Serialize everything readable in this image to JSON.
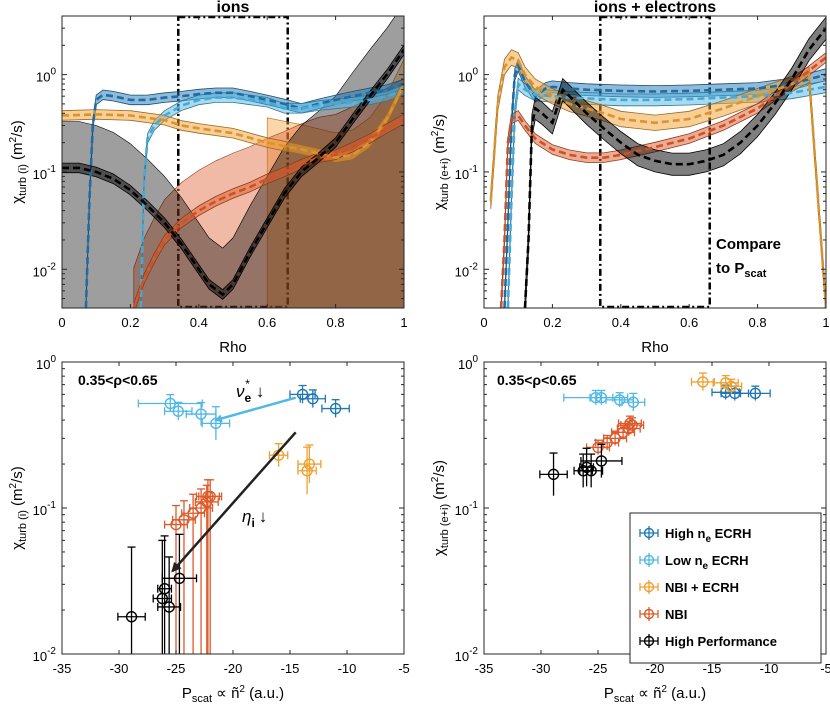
{
  "colors": {
    "high_ne_ecrh": "#1f77b4",
    "low_ne_ecrh": "#4fb8e6",
    "nbi_ecrh": "#f0a030",
    "nbi": "#dd5a2a",
    "high_perf": "#000000",
    "grey_band": "#8f8f8f"
  },
  "chart_data": [
    {
      "id": "tl",
      "type": "line",
      "title": "ions",
      "xlabel": "Rho",
      "ylabel_main": "χ",
      "ylabel_sub": "turb (i)",
      "ylabel_unit": "(m",
      "ylabel_sup": "2",
      "ylabel_end": "/s)",
      "xlim": [
        0,
        1
      ],
      "ylim": [
        0.004,
        4
      ],
      "yscale": "log",
      "xticks": [
        "0",
        "0.2",
        "0.4",
        "0.6",
        "0.8",
        "1"
      ],
      "yticks": [
        "10",
        "10",
        "10"
      ],
      "yexp": [
        "-2",
        "-1",
        "0"
      ],
      "box_rho": [
        0.34,
        0.66
      ],
      "series": [
        {
          "name": "High ne ECRH",
          "color": "high_ne_ecrh",
          "x": [
            0.07,
            0.08,
            0.09,
            0.1,
            0.12,
            0.15,
            0.2,
            0.25,
            0.3,
            0.35,
            0.4,
            0.45,
            0.5,
            0.55,
            0.6,
            0.65,
            0.7,
            0.75,
            0.8,
            0.85,
            0.9,
            0.95,
            1.0
          ],
          "y": [
            0.004,
            0.05,
            0.3,
            0.55,
            0.62,
            0.6,
            0.55,
            0.55,
            0.58,
            0.6,
            0.63,
            0.65,
            0.65,
            0.6,
            0.55,
            0.5,
            0.45,
            0.5,
            0.55,
            0.6,
            0.65,
            0.7,
            0.8
          ],
          "band": 0.12
        },
        {
          "name": "Low ne ECRH",
          "color": "low_ne_ecrh",
          "x": [
            0.23,
            0.24,
            0.25,
            0.27,
            0.3,
            0.35,
            0.4,
            0.45,
            0.5,
            0.55,
            0.6,
            0.65,
            0.7,
            0.75,
            0.8,
            0.85,
            0.9,
            0.95,
            1.0
          ],
          "y": [
            0.004,
            0.08,
            0.22,
            0.3,
            0.38,
            0.48,
            0.55,
            0.58,
            0.58,
            0.55,
            0.52,
            0.45,
            0.45,
            0.48,
            0.5,
            0.52,
            0.55,
            0.6,
            0.7
          ],
          "band": 0.12
        },
        {
          "name": "NBI + ECRH",
          "color": "nbi_ecrh",
          "x": [
            0.0,
            0.1,
            0.2,
            0.3,
            0.35,
            0.4,
            0.5,
            0.6,
            0.7,
            0.8,
            0.85,
            0.9,
            0.95,
            1.0
          ],
          "y": [
            0.38,
            0.39,
            0.38,
            0.34,
            0.3,
            0.28,
            0.25,
            0.2,
            0.17,
            0.14,
            0.15,
            0.2,
            0.35,
            0.8
          ],
          "band": 0.12,
          "unc_lo": 0.004,
          "unc_from": 0.55
        },
        {
          "name": "NBI",
          "color": "nbi",
          "x": [
            0.21,
            0.22,
            0.24,
            0.27,
            0.3,
            0.35,
            0.4,
            0.45,
            0.5,
            0.55,
            0.6,
            0.65,
            0.7,
            0.75,
            0.8,
            0.85,
            0.9,
            0.95,
            1.0
          ],
          "y": [
            0.004,
            0.005,
            0.008,
            0.013,
            0.02,
            0.03,
            0.04,
            0.05,
            0.06,
            0.07,
            0.085,
            0.1,
            0.12,
            0.14,
            0.15,
            0.18,
            0.22,
            0.28,
            0.35
          ],
          "band": 0.12,
          "unc_hi": 0.2,
          "unc_lo": 0.004
        },
        {
          "name": "High Performance",
          "color": "high_perf",
          "x": [
            0.0,
            0.05,
            0.1,
            0.15,
            0.2,
            0.25,
            0.3,
            0.35,
            0.4,
            0.43,
            0.47,
            0.5,
            0.55,
            0.6,
            0.65,
            0.7,
            0.75,
            0.8,
            0.85,
            0.9,
            0.95,
            1.0
          ],
          "y": [
            0.11,
            0.11,
            0.1,
            0.085,
            0.065,
            0.045,
            0.03,
            0.018,
            0.01,
            0.007,
            0.0055,
            0.007,
            0.015,
            0.03,
            0.06,
            0.1,
            0.14,
            0.2,
            0.35,
            0.6,
            1.0,
            1.8
          ],
          "band": 0.12,
          "unc_hi": 0.25,
          "unc_lo": 0.004
        }
      ]
    },
    {
      "id": "tr",
      "type": "line",
      "title": "ions + electrons",
      "xlabel": "Rho",
      "ylabel_main": "χ",
      "ylabel_sub": "turb (e+i)",
      "ylabel_unit": "(m",
      "ylabel_sup": "2",
      "ylabel_end": "/s)",
      "xlim": [
        0,
        1
      ],
      "ylim": [
        0.004,
        4
      ],
      "yscale": "log",
      "xticks": [
        "0",
        "0.2",
        "0.4",
        "0.6",
        "0.8",
        "1"
      ],
      "yticks": [
        "10",
        "10",
        "10"
      ],
      "yexp": [
        "-2",
        "-1",
        "0"
      ],
      "box_rho": [
        0.34,
        0.66
      ],
      "annotation_line1": "Compare",
      "annotation_line2": "to P",
      "annotation_sub": "scat",
      "series": [
        {
          "name": "High ne ECRH",
          "color": "high_ne_ecrh",
          "x": [
            0.06,
            0.07,
            0.08,
            0.09,
            0.1,
            0.12,
            0.15,
            0.18,
            0.2,
            0.25,
            0.3,
            0.4,
            0.5,
            0.6,
            0.7,
            0.8,
            0.9,
            1.0
          ],
          "y": [
            0.004,
            0.03,
            0.3,
            1.0,
            1.25,
            0.85,
            0.6,
            0.72,
            0.75,
            0.72,
            0.7,
            0.68,
            0.67,
            0.68,
            0.7,
            0.72,
            0.8,
            1.0
          ],
          "band": 0.15
        },
        {
          "name": "Low ne ECRH",
          "color": "low_ne_ecrh",
          "x": [
            0.07,
            0.08,
            0.09,
            0.1,
            0.12,
            0.15,
            0.2,
            0.25,
            0.3,
            0.4,
            0.5,
            0.6,
            0.7,
            0.8,
            0.9,
            1.0
          ],
          "y": [
            0.004,
            0.05,
            0.4,
            0.8,
            0.7,
            0.62,
            0.6,
            0.58,
            0.57,
            0.55,
            0.55,
            0.56,
            0.58,
            0.6,
            0.65,
            0.75
          ],
          "band": 0.15
        },
        {
          "name": "NBI + ECRH",
          "color": "nbi_ecrh",
          "x": [
            0.02,
            0.04,
            0.06,
            0.08,
            0.1,
            0.12,
            0.15,
            0.2,
            0.25,
            0.3,
            0.35,
            0.4,
            0.5,
            0.6,
            0.7,
            0.8,
            0.9,
            0.95,
            1.0
          ],
          "y": [
            0.05,
            0.5,
            1.2,
            1.5,
            1.4,
            1.0,
            0.75,
            0.6,
            0.5,
            0.45,
            0.4,
            0.35,
            0.32,
            0.35,
            0.45,
            0.6,
            0.8,
            1.0,
            0.004
          ],
          "band": 0.2
        },
        {
          "name": "NBI",
          "color": "nbi",
          "x": [
            0.05,
            0.06,
            0.07,
            0.08,
            0.1,
            0.12,
            0.15,
            0.2,
            0.25,
            0.3,
            0.35,
            0.4,
            0.5,
            0.6,
            0.7,
            0.8,
            0.9,
            1.0
          ],
          "y": [
            0.004,
            0.02,
            0.2,
            0.35,
            0.38,
            0.3,
            0.22,
            0.17,
            0.15,
            0.14,
            0.14,
            0.15,
            0.18,
            0.22,
            0.3,
            0.45,
            0.8,
            1.5
          ],
          "band": 0.12
        },
        {
          "name": "High Performance",
          "color": "high_perf",
          "x": [
            0.12,
            0.13,
            0.14,
            0.15,
            0.17,
            0.2,
            0.23,
            0.25,
            0.3,
            0.35,
            0.4,
            0.45,
            0.5,
            0.55,
            0.6,
            0.65,
            0.7,
            0.75,
            0.8,
            0.85,
            0.9,
            0.95,
            1.0
          ],
          "y": [
            0.004,
            0.02,
            0.3,
            0.45,
            0.4,
            0.32,
            0.7,
            0.6,
            0.4,
            0.28,
            0.2,
            0.15,
            0.13,
            0.12,
            0.12,
            0.13,
            0.15,
            0.2,
            0.3,
            0.5,
            0.9,
            1.8,
            3.0
          ],
          "band": 0.3
        }
      ]
    },
    {
      "id": "bl",
      "type": "scatter",
      "xlabel_main": "P",
      "xlabel_sub": "scat",
      "xlabel_rest": " ∝ ñ",
      "xlabel_sup": "2",
      "xlabel_end": " (a.u.)",
      "ylabel_main": "χ",
      "ylabel_sub": "turb (i)",
      "ylabel_unit": "(m",
      "ylabel_sup": "2",
      "ylabel_end": "/s)",
      "xlim": [
        -35,
        -5
      ],
      "ylim": [
        0.01,
        1
      ],
      "yscale": "log",
      "xticks": [
        "-35",
        "-30",
        "-25",
        "-20",
        "-15",
        "-10",
        "-5"
      ],
      "yticks": [
        "10",
        "10",
        "10"
      ],
      "yexp": [
        "-2",
        "-1",
        "0"
      ],
      "range_label": "0.35<ρ<0.65",
      "annot_nu": "ν",
      "annot_nu_sub": "e",
      "annot_nu_sup": "*",
      "annot_nu_arrow": "↓",
      "annot_eta": "η",
      "annot_eta_sub": "i",
      "annot_eta_arrow": "↓",
      "arrow_nu": [
        [
          -14.5,
          0.57
        ],
        [
          -21.5,
          0.4
        ]
      ],
      "arrow_eta": [
        [
          -14.5,
          0.33
        ],
        [
          -25.3,
          0.037
        ]
      ],
      "series": [
        {
          "name": "High ne ECRH",
          "color": "high_ne_ecrh",
          "x": [
            -13.9,
            -13.0,
            -11.0
          ],
          "y": [
            0.6,
            0.56,
            0.48
          ],
          "xerr": [
            1.1,
            1.1,
            1.2
          ],
          "yerr_rel": [
            0.15,
            0.15,
            0.15
          ]
        },
        {
          "name": "Low ne ECRH",
          "color": "low_ne_ecrh",
          "x": [
            -25.5,
            -24.8,
            -22.8,
            -21.5
          ],
          "y": [
            0.52,
            0.46,
            0.44,
            0.38
          ],
          "xerr": [
            2.8,
            1.2,
            1.3,
            1.2
          ],
          "yerr_rel": [
            0.15,
            0.15,
            0.2,
            0.3
          ]
        },
        {
          "name": "NBI + ECRH",
          "color": "nbi_ecrh",
          "x": [
            -16.0,
            -13.3,
            -13.5
          ],
          "y": [
            0.23,
            0.2,
            0.18
          ],
          "xerr": [
            0.8,
            1.0,
            0.8
          ],
          "yerr_rel": [
            0.2,
            0.35,
            0.45
          ]
        },
        {
          "name": "NBI",
          "color": "nbi",
          "x": [
            -25.0,
            -24.3,
            -23.5,
            -22.8,
            -22.3,
            -22.0,
            -22.2
          ],
          "y": [
            0.077,
            0.083,
            0.092,
            0.1,
            0.11,
            0.12,
            0.12
          ],
          "xerr": [
            1.0,
            1.0,
            1.0,
            1.0,
            1.0,
            1.0,
            1.0
          ],
          "ylo": [
            0.01,
            0.01,
            0.01,
            0.01,
            0.01,
            0.01,
            0.01
          ],
          "yerr_rel": [
            0.35,
            0.35,
            0.35,
            0.35,
            0.3,
            0.3,
            0.3
          ]
        },
        {
          "name": "High Performance",
          "color": "high_perf",
          "x": [
            -28.9,
            -26.2,
            -26.0,
            -25.6,
            -24.7
          ],
          "y": [
            0.018,
            0.024,
            0.028,
            0.021,
            0.033
          ],
          "xerr": [
            1.2,
            0.8,
            0.6,
            1.0,
            1.5
          ],
          "ylo": [
            0.01,
            0.01,
            0.01,
            0.01,
            0.01
          ],
          "yerr_rel": [
            2.0,
            1.5,
            1.3,
            1.2,
            1.0
          ]
        }
      ]
    },
    {
      "id": "br",
      "type": "scatter",
      "xlabel_main": "P",
      "xlabel_sub": "scat",
      "xlabel_rest": " ∝ ñ",
      "xlabel_sup": "2",
      "xlabel_end": " (a.u.)",
      "ylabel_main": "χ",
      "ylabel_sub": "turb (e+i)",
      "ylabel_unit": "(m",
      "ylabel_sup": "2",
      "ylabel_end": "/s)",
      "xlim": [
        -35,
        -5
      ],
      "ylim": [
        0.01,
        1
      ],
      "yscale": "log",
      "xticks": [
        "-35",
        "-30",
        "-25",
        "-20",
        "-15",
        "-10",
        "-5"
      ],
      "yticks": [
        "10",
        "10",
        "10"
      ],
      "yexp": [
        "-2",
        "-1",
        "0"
      ],
      "range_label": "0.35<ρ<0.65",
      "legend_position": "bottom-right",
      "legend": [
        {
          "pre": "High n",
          "sub": "e",
          "post": " ECRH",
          "color": "high_ne_ecrh"
        },
        {
          "pre": "Low n",
          "sub": "e",
          "post": " ECRH",
          "color": "low_ne_ecrh"
        },
        {
          "pre": "NBI + ECRH",
          "sub": "",
          "post": "",
          "color": "nbi_ecrh"
        },
        {
          "pre": "NBI",
          "sub": "",
          "post": "",
          "color": "nbi"
        },
        {
          "pre": "High Performance",
          "sub": "",
          "post": "",
          "color": "high_perf"
        }
      ],
      "series": [
        {
          "name": "High ne ECRH",
          "color": "high_ne_ecrh",
          "x": [
            -13.8,
            -13.0,
            -11.2
          ],
          "y": [
            0.62,
            0.61,
            0.61
          ],
          "xerr": [
            1.2,
            1.2,
            1.3
          ],
          "yerr_rel": [
            0.12,
            0.12,
            0.12
          ]
        },
        {
          "name": "Low ne ECRH",
          "color": "low_ne_ecrh",
          "x": [
            -25.2,
            -24.7,
            -23.1,
            -21.9
          ],
          "y": [
            0.57,
            0.57,
            0.55,
            0.53
          ],
          "xerr": [
            2.8,
            1.0,
            1.2,
            1.0
          ],
          "yerr_rel": [
            0.12,
            0.12,
            0.12,
            0.15
          ]
        },
        {
          "name": "NBI + ECRH",
          "color": "nbi_ecrh",
          "x": [
            -15.8,
            -13.8,
            -13.3
          ],
          "y": [
            0.73,
            0.72,
            0.68
          ],
          "xerr": [
            1.0,
            1.1,
            0.9
          ],
          "yerr_rel": [
            0.15,
            0.12,
            0.12
          ]
        },
        {
          "name": "NBI",
          "color": "nbi",
          "x": [
            -25.0,
            -24.2,
            -23.5,
            -22.8,
            -22.3,
            -22.0,
            -22.2
          ],
          "y": [
            0.26,
            0.28,
            0.3,
            0.33,
            0.35,
            0.37,
            0.38
          ],
          "xerr": [
            1.0,
            1.0,
            1.0,
            1.0,
            1.0,
            1.0,
            1.0
          ],
          "yerr_rel": [
            0.12,
            0.12,
            0.12,
            0.12,
            0.12,
            0.12,
            0.12
          ]
        },
        {
          "name": "High Performance",
          "color": "high_perf",
          "x": [
            -28.9,
            -26.3,
            -26.0,
            -25.6,
            -24.7
          ],
          "y": [
            0.17,
            0.18,
            0.19,
            0.18,
            0.21
          ],
          "xerr": [
            1.2,
            0.8,
            0.6,
            1.0,
            1.8
          ],
          "yerr_rel": [
            0.4,
            0.3,
            0.35,
            0.3,
            0.3
          ]
        }
      ]
    }
  ]
}
